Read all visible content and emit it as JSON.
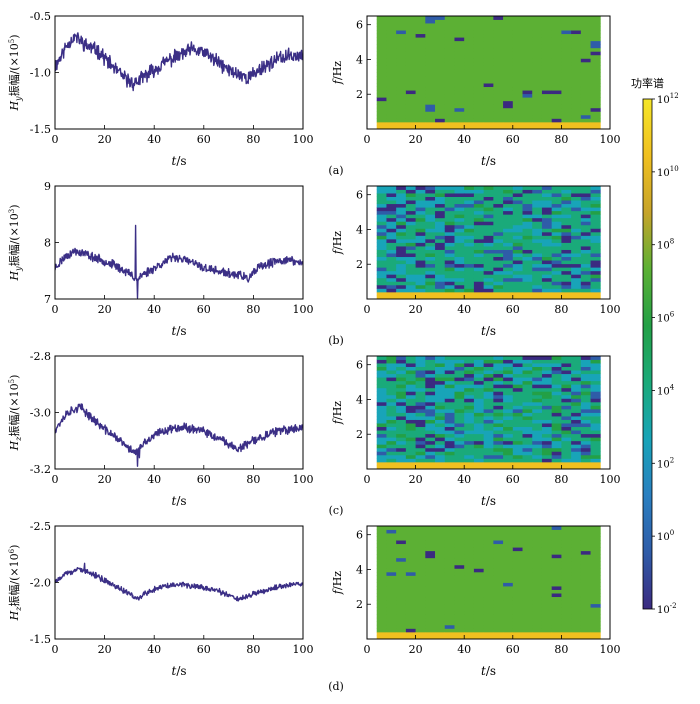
{
  "figure": {
    "panel_labels": [
      "(a)",
      "(b)",
      "(c)",
      "(d)"
    ],
    "colorbar": {
      "title": "功率谱",
      "ticks": [
        {
          "base": "10",
          "exp": "12",
          "value": 12
        },
        {
          "base": "10",
          "exp": "10",
          "value": 10
        },
        {
          "base": "10",
          "exp": "8",
          "value": 8
        },
        {
          "base": "10",
          "exp": "6",
          "value": 6
        },
        {
          "base": "10",
          "exp": "4",
          "value": 4
        },
        {
          "base": "10",
          "exp": "2",
          "value": 2
        },
        {
          "base": "10",
          "exp": "0",
          "value": 0
        },
        {
          "base": "10",
          "exp": "-2",
          "value": -2
        }
      ],
      "colors": [
        "#3b2a80",
        "#2f5ca8",
        "#2a7fc0",
        "#18a4b8",
        "#1aaa7a",
        "#23a046",
        "#5cb034",
        "#c7a42a",
        "#f0c020",
        "#f5e628"
      ]
    },
    "line_color": "#3b2f86"
  },
  "chart_data": [
    {
      "type": "line",
      "panel": "a",
      "ylabel_main": "H",
      "ylabel_sub": "y",
      "ylabel_text": "振幅/(×10",
      "ylabel_exp": "5",
      "ylabel_end": ")",
      "xlabel_main": "t",
      "xlabel_unit": "/s",
      "xlim": [
        0,
        100
      ],
      "ylim": [
        -1.5,
        -0.5
      ],
      "yticks": [
        -0.5,
        -1.0,
        -1.5
      ],
      "ytick_labels": [
        "-0.5",
        "-1.0",
        "-1.5"
      ],
      "xticks": [
        0,
        20,
        40,
        60,
        80,
        100
      ],
      "xtick_labels": [
        "0",
        "20",
        "40",
        "60",
        "80",
        "100"
      ],
      "trend_x": [
        0,
        5,
        8,
        12,
        18,
        22,
        28,
        32,
        37,
        45,
        55,
        60,
        65,
        70,
        78,
        84,
        90,
        95,
        100
      ],
      "trend_y": [
        -0.95,
        -0.75,
        -0.68,
        -0.75,
        -0.82,
        -0.92,
        -1.05,
        -1.1,
        -1.02,
        -0.9,
        -0.8,
        -0.82,
        -0.9,
        -0.98,
        -1.05,
        -0.95,
        -0.88,
        -0.85,
        -0.85
      ],
      "noise": 0.05,
      "spikes": [],
      "points": 520,
      "seed": 11
    },
    {
      "type": "line",
      "panel": "b",
      "ylabel_main": "H",
      "ylabel_sub": "y",
      "ylabel_text": "振幅/(×10",
      "ylabel_exp": "3",
      "ylabel_end": ")",
      "xlabel_main": "t",
      "xlabel_unit": "/s",
      "xlim": [
        0,
        100
      ],
      "ylim": [
        7,
        9
      ],
      "yticks": [
        9,
        8,
        7
      ],
      "ytick_labels": [
        "9",
        "8",
        "7"
      ],
      "xticks": [
        0,
        20,
        40,
        60,
        80,
        100
      ],
      "xtick_labels": [
        "0",
        "20",
        "40",
        "60",
        "80",
        "100"
      ],
      "trend_x": [
        0,
        4,
        8,
        12,
        18,
        24,
        30,
        33,
        36,
        42,
        48,
        55,
        60,
        65,
        70,
        75,
        78,
        82,
        88,
        94,
        100
      ],
      "trend_y": [
        7.55,
        7.75,
        7.85,
        7.8,
        7.7,
        7.6,
        7.45,
        7.35,
        7.45,
        7.6,
        7.75,
        7.65,
        7.55,
        7.5,
        7.45,
        7.42,
        7.35,
        7.55,
        7.65,
        7.7,
        7.62
      ],
      "noise": 0.06,
      "spikes": [
        [
          32.5,
          8.3
        ],
        [
          33.3,
          7.02
        ]
      ],
      "points": 520,
      "seed": 23
    },
    {
      "type": "line",
      "panel": "c",
      "ylabel_main": "H",
      "ylabel_sub": "z",
      "ylabel_text": "振幅/(×10",
      "ylabel_exp": "5",
      "ylabel_end": ")",
      "xlabel_main": "t",
      "xlabel_unit": "/s",
      "xlim": [
        0,
        100
      ],
      "ylim": [
        -3.2,
        -2.8
      ],
      "yticks": [
        -2.8,
        -3.0,
        -3.2
      ],
      "ytick_labels": [
        "-2.8",
        "-3.0",
        "-3.2"
      ],
      "xticks": [
        0,
        20,
        40,
        60,
        80,
        100
      ],
      "xtick_labels": [
        "0",
        "20",
        "40",
        "60",
        "80",
        "100"
      ],
      "trend_x": [
        0,
        5,
        10,
        15,
        20,
        25,
        30,
        33,
        36,
        42,
        50,
        58,
        65,
        70,
        74,
        80,
        88,
        95,
        100
      ],
      "trend_y": [
        -3.06,
        -3.0,
        -2.98,
        -3.02,
        -3.06,
        -3.09,
        -3.13,
        -3.14,
        -3.11,
        -3.07,
        -3.05,
        -3.06,
        -3.09,
        -3.11,
        -3.13,
        -3.1,
        -3.07,
        -3.06,
        -3.05
      ],
      "noise": 0.012,
      "spikes": [
        [
          33.2,
          -3.19
        ],
        [
          34,
          -3.16
        ]
      ],
      "points": 520,
      "seed": 37
    },
    {
      "type": "line",
      "panel": "d",
      "ylabel_main": "H",
      "ylabel_sub": "z",
      "ylabel_text": "振幅/(×10",
      "ylabel_exp": "6",
      "ylabel_end": ")",
      "xlabel_main": "t",
      "xlabel_unit": "/s",
      "xlim": [
        0,
        100
      ],
      "ylim": [
        -2.5,
        -1.5
      ],
      "inverted": true,
      "yticks": [
        -2.5,
        -2.0,
        -1.5
      ],
      "ytick_labels": [
        "-2.5",
        "-2.0",
        "-1.5"
      ],
      "xticks": [
        0,
        20,
        40,
        60,
        80,
        100
      ],
      "xtick_labels": [
        "0",
        "20",
        "40",
        "60",
        "80",
        "100"
      ],
      "trend_x": [
        0,
        5,
        10,
        15,
        20,
        25,
        30,
        33,
        36,
        42,
        50,
        58,
        65,
        70,
        74,
        80,
        88,
        95,
        100
      ],
      "trend_y": [
        -2.0,
        -2.08,
        -2.12,
        -2.08,
        -2.02,
        -1.96,
        -1.9,
        -1.85,
        -1.9,
        -1.96,
        -1.98,
        -1.96,
        -1.93,
        -1.89,
        -1.85,
        -1.9,
        -1.95,
        -1.98,
        -1.98
      ],
      "noise": 0.02,
      "spikes": [
        [
          12,
          -2.17
        ]
      ],
      "points": 520,
      "seed": 53
    },
    {
      "type": "heatmap",
      "panel": "a",
      "ylabel_main": "f",
      "ylabel_unit": "/Hz",
      "xlabel_main": "t",
      "xlabel_unit": "/s",
      "xlim": [
        0,
        100
      ],
      "ylim": [
        0,
        6.5
      ],
      "data_xrange": [
        4,
        96
      ],
      "yticks": [
        2,
        4,
        6
      ],
      "ytick_labels": [
        "2",
        "4",
        "6"
      ],
      "xticks": [
        0,
        20,
        40,
        60,
        80,
        100
      ],
      "xtick_labels": [
        "0",
        "20",
        "40",
        "60",
        "80",
        "100"
      ],
      "base_level": 7,
      "variation": 0.4,
      "dark_frac": 0.04,
      "low_band_level": 10.5,
      "low_band_top": 0.25,
      "seed": 101
    },
    {
      "type": "heatmap",
      "panel": "b",
      "ylabel_main": "f",
      "ylabel_unit": "/Hz",
      "xlabel_main": "t",
      "xlabel_unit": "/s",
      "xlim": [
        0,
        100
      ],
      "ylim": [
        0,
        6.5
      ],
      "data_xrange": [
        4,
        96
      ],
      "yticks": [
        2,
        4,
        6
      ],
      "ytick_labels": [
        "2",
        "4",
        "6"
      ],
      "xticks": [
        0,
        20,
        40,
        60,
        80,
        100
      ],
      "xtick_labels": [
        "0",
        "20",
        "40",
        "60",
        "80",
        "100"
      ],
      "base_level": 4,
      "variation": 1.2,
      "dark_frac": 0.22,
      "low_band_level": 10.5,
      "low_band_top": 0.28,
      "seed": 202
    },
    {
      "type": "heatmap",
      "panel": "c",
      "ylabel_main": "f",
      "ylabel_unit": "/Hz",
      "xlabel_main": "t",
      "xlabel_unit": "/s",
      "xlim": [
        0,
        100
      ],
      "ylim": [
        0,
        6.5
      ],
      "data_xrange": [
        4,
        96
      ],
      "yticks": [
        2,
        4,
        6
      ],
      "ytick_labels": [
        "2",
        "4",
        "6"
      ],
      "xticks": [
        0,
        20,
        40,
        60,
        80,
        100
      ],
      "xtick_labels": [
        "0",
        "20",
        "40",
        "60",
        "80",
        "100"
      ],
      "base_level": 4,
      "variation": 1.4,
      "dark_frac": 0.18,
      "low_band_level": 10.5,
      "low_band_top": 0.25,
      "seed": 303
    },
    {
      "type": "heatmap",
      "panel": "d",
      "ylabel_main": "f",
      "ylabel_unit": "/Hz",
      "xlabel_main": "t",
      "xlabel_unit": "/s",
      "xlim": [
        0,
        100
      ],
      "ylim": [
        0,
        6.5
      ],
      "data_xrange": [
        4,
        96
      ],
      "yticks": [
        2,
        4,
        6
      ],
      "ytick_labels": [
        "2",
        "4",
        "6"
      ],
      "xticks": [
        0,
        20,
        40,
        60,
        80,
        100
      ],
      "xtick_labels": [
        "0",
        "20",
        "40",
        "60",
        "80",
        "100"
      ],
      "base_level": 7,
      "variation": 0.35,
      "dark_frac": 0.03,
      "low_band_level": 10.5,
      "low_band_top": 0.35,
      "seed": 404
    }
  ]
}
